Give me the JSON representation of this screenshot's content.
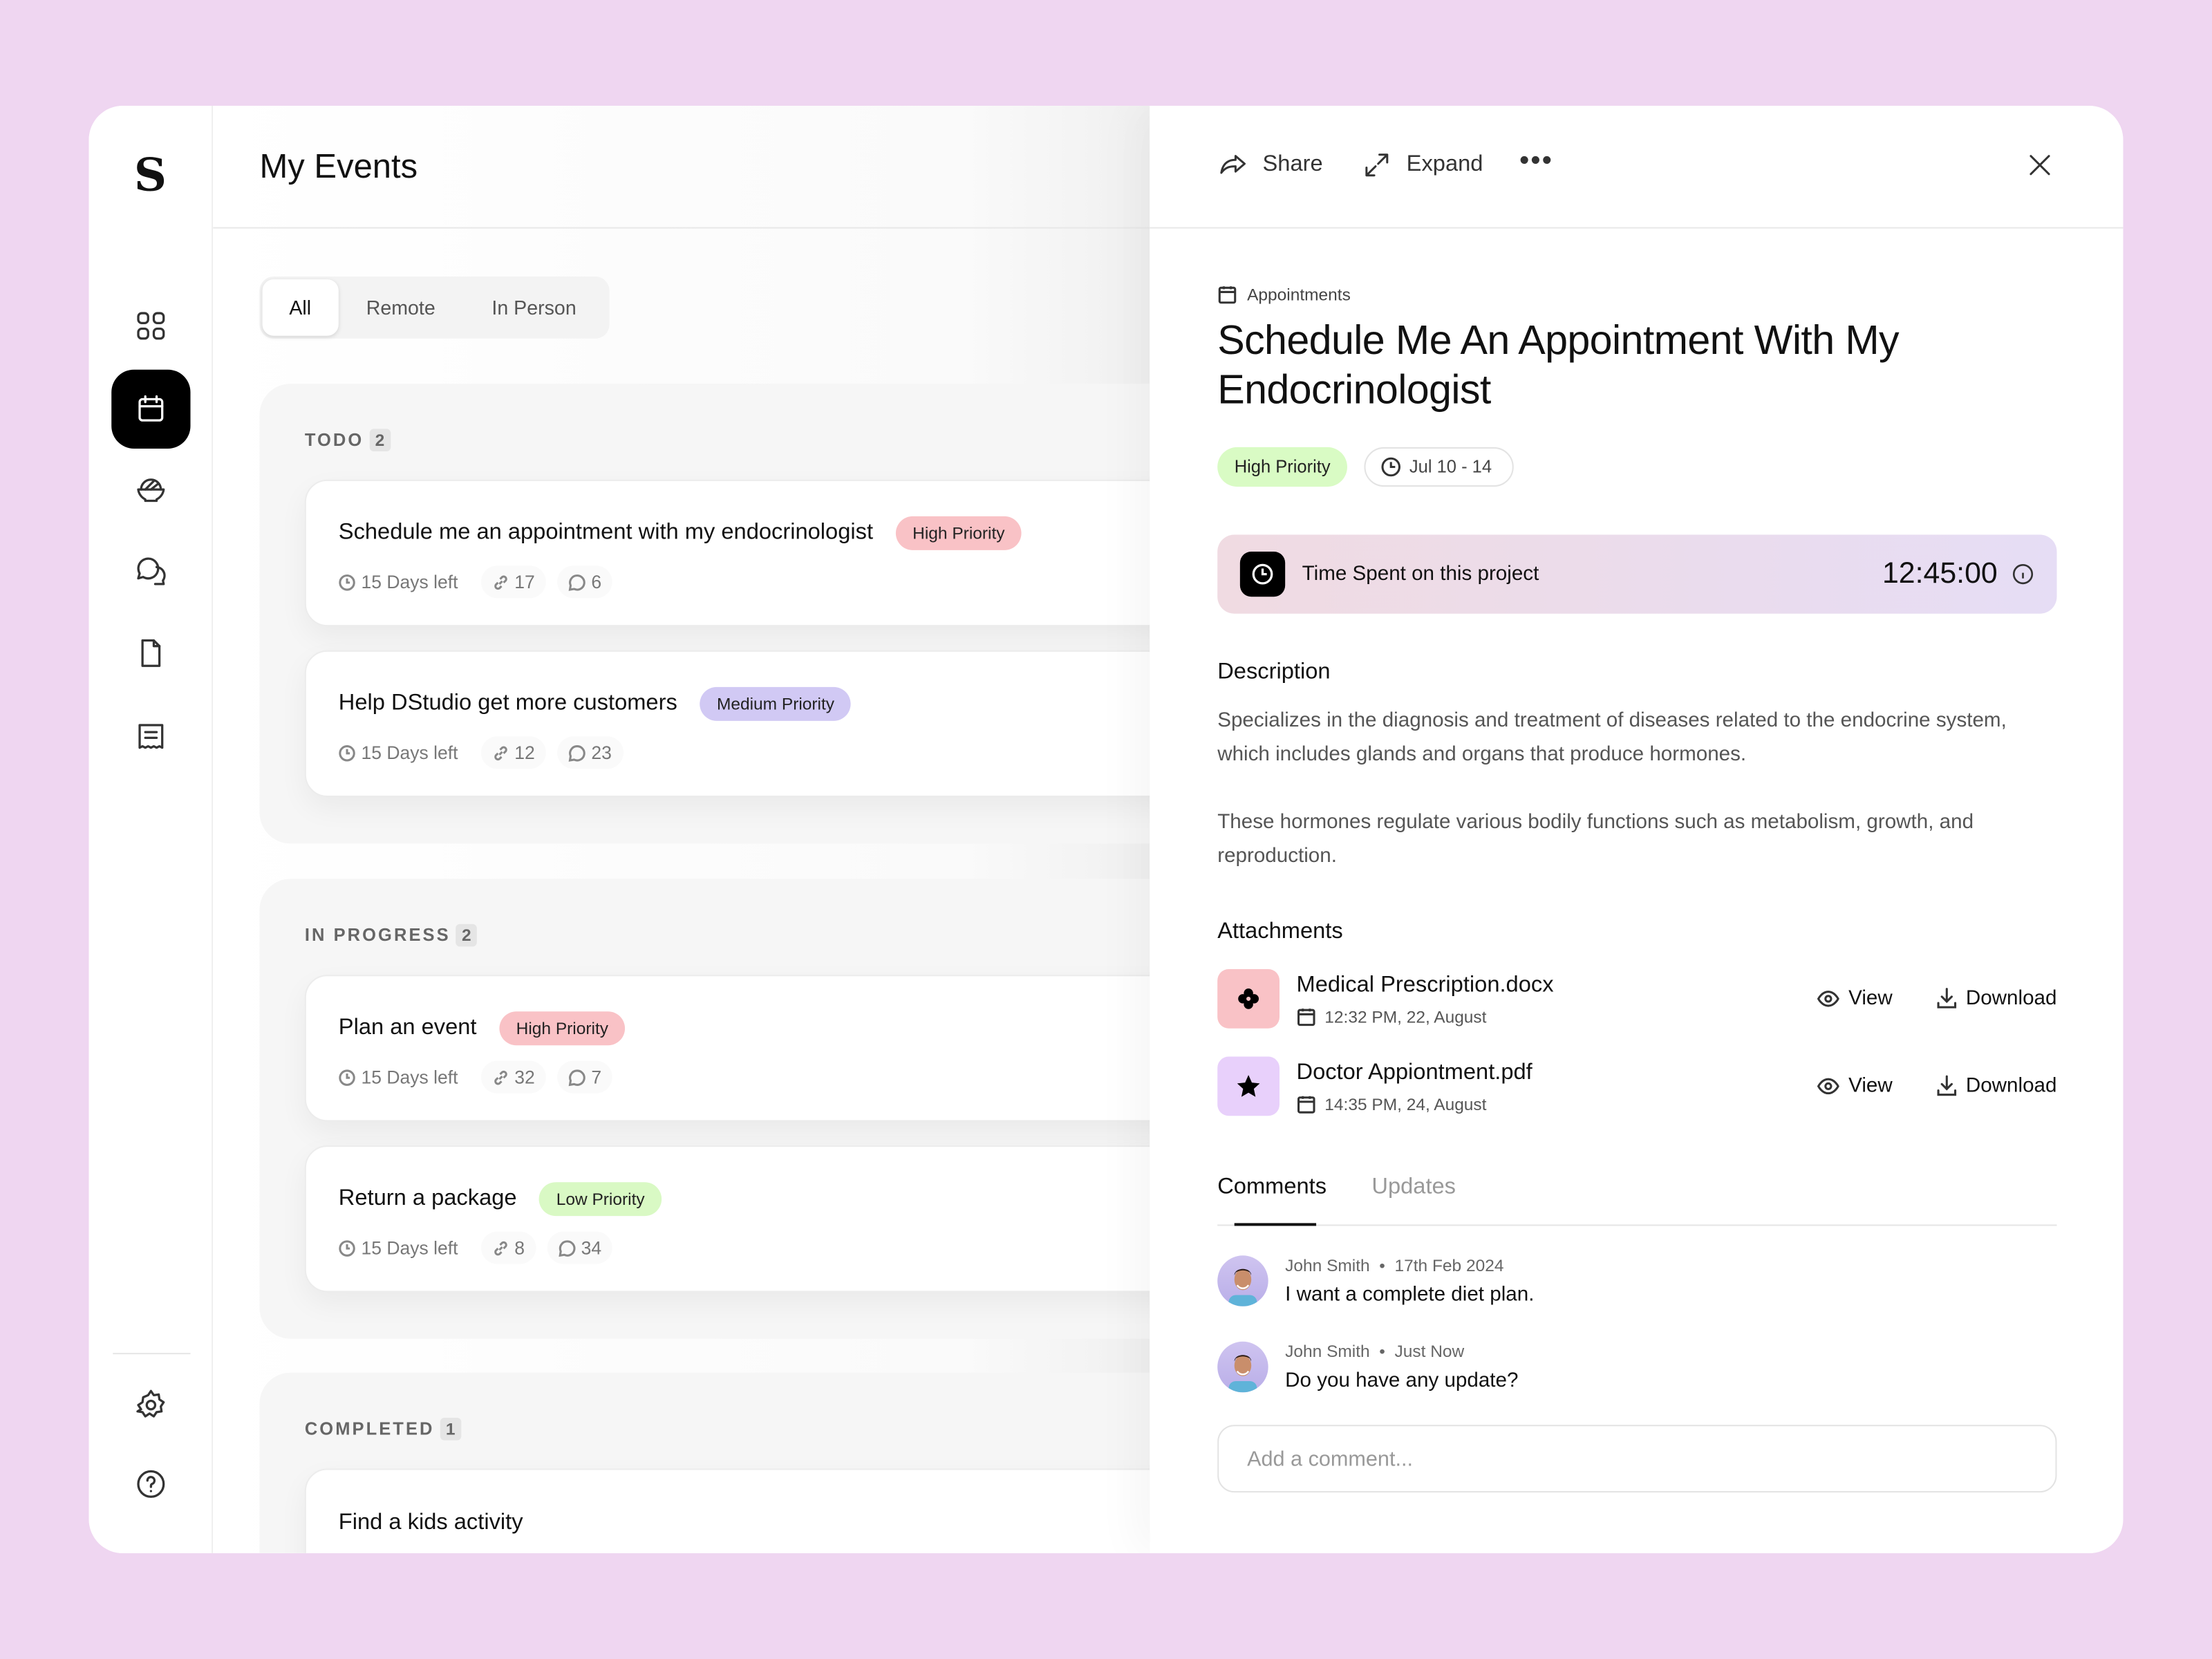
{
  "sidebar": {
    "logo": "S",
    "items": [
      "dashboard",
      "events",
      "food",
      "chat",
      "documents",
      "receipts"
    ],
    "bottom": [
      "settings",
      "help"
    ]
  },
  "main": {
    "title": "My Events",
    "filters": [
      "All",
      "Remote",
      "In Person"
    ],
    "columns": [
      {
        "label": "TODO",
        "count": "2",
        "tasks": [
          {
            "title": "Schedule me an appointment with my endocrinologist",
            "priority": "High Priority",
            "days": "15 Days left",
            "links": "17",
            "comments": "6"
          },
          {
            "title": "Help DStudio get more customers",
            "priority": "Medium Priority",
            "days": "15 Days left",
            "links": "12",
            "comments": "23"
          }
        ]
      },
      {
        "label": "IN PROGRESS",
        "count": "2",
        "tasks": [
          {
            "title": "Plan an event",
            "priority": "High Priority",
            "days": "15 Days left",
            "links": "32",
            "comments": "7"
          },
          {
            "title": "Return a package",
            "priority": "Low Priority",
            "days": "15 Days left",
            "links": "8",
            "comments": "34"
          }
        ]
      },
      {
        "label": "COMPLETED",
        "count": "1",
        "tasks": [
          {
            "title": "Find a kids activity"
          }
        ]
      }
    ]
  },
  "colors": {
    "high": "#f9c2c6",
    "medium": "#d1c9f4",
    "low": "#d9f9c4",
    "background": "#efd6f1"
  },
  "detail": {
    "share": "Share",
    "expand": "Expand",
    "category": "Appointments",
    "title": "Schedule Me An Appointment With My Endocrinologist",
    "priority": "High Priority",
    "dates": "Jul 10 - 14",
    "timer_label": "Time Spent on this project",
    "timer_value": "12:45:00",
    "description_heading": "Description",
    "description": [
      "Specializes in the diagnosis and treatment of diseases related to the endocrine system, which includes glands and organs that produce hormones.",
      "These hormones regulate various bodily functions such as metabolism, growth, and reproduction."
    ],
    "attachments_heading": "Attachments",
    "attachments": [
      {
        "name": "Medical Prescription.docx",
        "date": "12:32 PM, 22, August",
        "view": "View",
        "download": "Download"
      },
      {
        "name": "Doctor Appiontment.pdf",
        "date": "14:35 PM, 24, August",
        "view": "View",
        "download": "Download"
      }
    ],
    "tabs": [
      "Comments",
      "Updates"
    ],
    "comments": [
      {
        "author": "John Smith",
        "time": "17th Feb 2024",
        "text": "I want a complete diet plan."
      },
      {
        "author": "John Smith",
        "time": "Just Now",
        "text": "Do you have any update?"
      }
    ],
    "comment_placeholder": "Add a comment..."
  }
}
